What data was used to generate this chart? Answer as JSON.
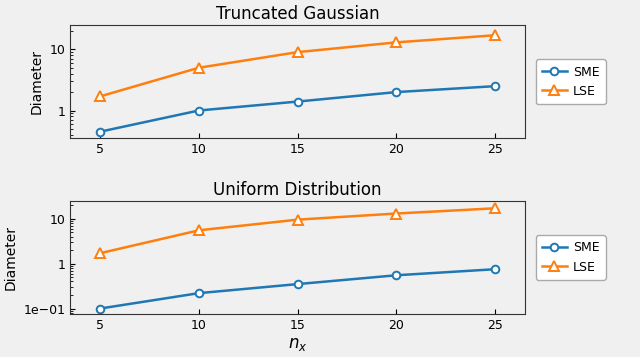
{
  "x": [
    5,
    10,
    15,
    20,
    25
  ],
  "gauss_sme": [
    0.45,
    1.0,
    1.4,
    2.0,
    2.5
  ],
  "gauss_lse": [
    1.7,
    5.0,
    9.0,
    13.0,
    17.0
  ],
  "uniform_sme": [
    0.1,
    0.22,
    0.35,
    0.55,
    0.75
  ],
  "uniform_lse": [
    1.7,
    5.5,
    9.5,
    13.0,
    17.0
  ],
  "title1": "Truncated Gaussian",
  "title2": "Uniform Distribution",
  "ylabel": "Diameter",
  "xlabel": "$n_x$",
  "sme_color": "#1f77b4",
  "lse_color": "#ff7f0e",
  "sme_label": "SME",
  "lse_label": "LSE",
  "xticks": [
    5,
    10,
    15,
    20,
    25
  ],
  "gauss_ylim": [
    0.35,
    25
  ],
  "uniform_ylim": [
    0.075,
    25
  ],
  "title_fontsize": 12,
  "label_fontsize": 10,
  "tick_fontsize": 9,
  "legend_fontsize": 9,
  "bg_color": "#f0f0f0"
}
